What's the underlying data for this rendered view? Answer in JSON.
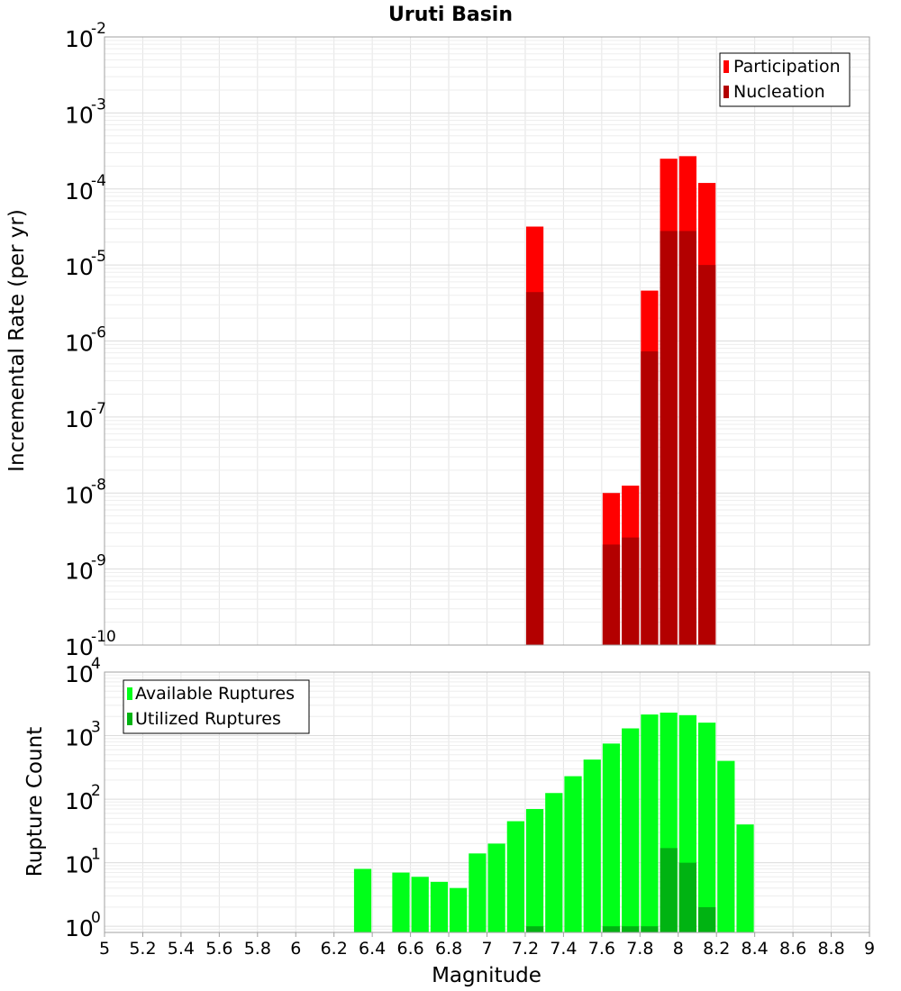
{
  "figure": {
    "title": "Uruti Basin",
    "xlabel": "Magnitude",
    "x_ticks": [
      "5",
      "5.2",
      "5.4",
      "5.6",
      "5.8",
      "6",
      "6.2",
      "6.4",
      "6.6",
      "6.8",
      "7",
      "7.2",
      "7.4",
      "7.6",
      "7.8",
      "8",
      "8.2",
      "8.4",
      "8.6",
      "8.8",
      "9"
    ]
  },
  "chart_data": [
    {
      "type": "bar",
      "ylabel": "Incremental Rate (per yr)",
      "yscale": "log",
      "ylim": [
        1e-10,
        0.01
      ],
      "y_tick_exponents": [
        "-10",
        "-9",
        "-8",
        "-7",
        "-6",
        "-5",
        "-4",
        "-3",
        "-2"
      ],
      "xlim": [
        5,
        9
      ],
      "grid": true,
      "legend_position": "top-right",
      "series": [
        {
          "name": "Participation",
          "color": "#ff0000",
          "points": [
            {
              "x": 7.25,
              "y": 3.2e-05
            },
            {
              "x": 7.65,
              "y": 1e-08
            },
            {
              "x": 7.75,
              "y": 1.25e-08
            },
            {
              "x": 7.85,
              "y": 4.6e-06
            },
            {
              "x": 7.95,
              "y": 0.00025
            },
            {
              "x": 8.05,
              "y": 0.00027
            },
            {
              "x": 8.15,
              "y": 0.00012
            }
          ]
        },
        {
          "name": "Nucleation",
          "color": "#b30000",
          "points": [
            {
              "x": 7.25,
              "y": 4.4e-06
            },
            {
              "x": 7.65,
              "y": 2.1e-09
            },
            {
              "x": 7.75,
              "y": 2.6e-09
            },
            {
              "x": 7.85,
              "y": 7.3e-07
            },
            {
              "x": 7.95,
              "y": 2.8e-05
            },
            {
              "x": 8.05,
              "y": 2.8e-05
            },
            {
              "x": 8.15,
              "y": 1e-05
            }
          ]
        }
      ]
    },
    {
      "type": "bar",
      "ylabel": "Rupture Count",
      "yscale": "log",
      "ylim": [
        0.8,
        10000
      ],
      "y_tick_exponents": [
        "0",
        "1",
        "2",
        "3",
        "4"
      ],
      "xlim": [
        5,
        9
      ],
      "grid": true,
      "legend_position": "top-left",
      "series": [
        {
          "name": "Available Ruptures",
          "color": "#00ff19",
          "points": [
            {
              "x": 6.35,
              "y": 8
            },
            {
              "x": 6.55,
              "y": 7
            },
            {
              "x": 6.65,
              "y": 6
            },
            {
              "x": 6.75,
              "y": 5
            },
            {
              "x": 6.85,
              "y": 4
            },
            {
              "x": 6.95,
              "y": 14
            },
            {
              "x": 7.05,
              "y": 20
            },
            {
              "x": 7.15,
              "y": 45
            },
            {
              "x": 7.25,
              "y": 70
            },
            {
              "x": 7.35,
              "y": 125
            },
            {
              "x": 7.45,
              "y": 230
            },
            {
              "x": 7.55,
              "y": 420
            },
            {
              "x": 7.65,
              "y": 750
            },
            {
              "x": 7.75,
              "y": 1300
            },
            {
              "x": 7.85,
              "y": 2150
            },
            {
              "x": 7.95,
              "y": 2300
            },
            {
              "x": 8.05,
              "y": 2100
            },
            {
              "x": 8.15,
              "y": 1600
            },
            {
              "x": 8.25,
              "y": 400
            },
            {
              "x": 8.35,
              "y": 40
            }
          ]
        },
        {
          "name": "Utilized Ruptures",
          "color": "#00b312",
          "points": [
            {
              "x": 7.25,
              "y": 1
            },
            {
              "x": 7.65,
              "y": 1
            },
            {
              "x": 7.75,
              "y": 1
            },
            {
              "x": 7.85,
              "y": 1
            },
            {
              "x": 7.95,
              "y": 17
            },
            {
              "x": 8.05,
              "y": 10
            },
            {
              "x": 8.15,
              "y": 2
            }
          ]
        }
      ]
    }
  ]
}
